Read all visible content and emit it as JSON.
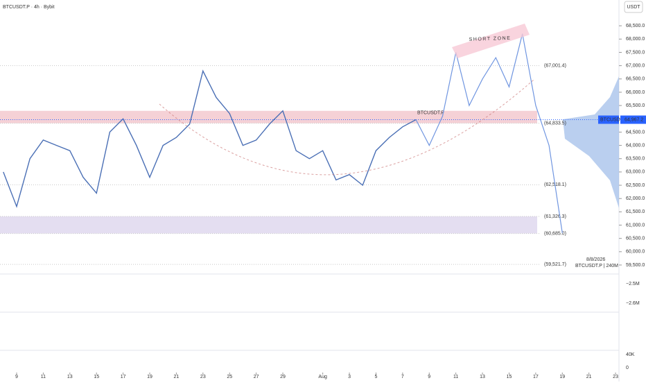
{
  "header": {
    "symbol": "BTCUSDT.P · 4h · Bybit",
    "currency": "USDT"
  },
  "chart_data": {
    "type": "line",
    "x": [
      8,
      9,
      10,
      11,
      12,
      13,
      14,
      15,
      16,
      17,
      18,
      19,
      20,
      21,
      22,
      23,
      24,
      25,
      26,
      27,
      28,
      29,
      30,
      31,
      32,
      33,
      34,
      35,
      36,
      37,
      38,
      39,
      40,
      41,
      42,
      43,
      44,
      45,
      46,
      47,
      48,
      49,
      50
    ],
    "xlim": [
      7.75,
      54.1
    ],
    "xticks": [
      9,
      11,
      13,
      15,
      17,
      19,
      21,
      23,
      25,
      27,
      29,
      {
        "value": 32,
        "label": "Aug"
      },
      {
        "value": 34,
        "label": "3"
      },
      {
        "value": 36,
        "label": "5"
      },
      {
        "value": 38,
        "label": "7"
      },
      {
        "value": 40,
        "label": "9"
      },
      {
        "value": 42,
        "label": "11"
      },
      {
        "value": 44,
        "label": "13"
      },
      {
        "value": 46,
        "label": "15"
      },
      {
        "value": 48,
        "label": "17"
      },
      {
        "value": 50,
        "label": "19"
      },
      {
        "value": 52,
        "label": "21"
      },
      {
        "value": 54,
        "label": "23"
      }
    ],
    "ylim": [
      59030,
      69470
    ],
    "yticks": [
      {
        "value": 68500,
        "label": "68,500.0"
      },
      {
        "value": 68000,
        "label": "68,000.0"
      },
      {
        "value": 67500,
        "label": "67,500.0"
      },
      {
        "value": 67000,
        "label": "67,000.0"
      },
      {
        "value": 66500,
        "label": "66,500.0"
      },
      {
        "value": 66000,
        "label": "66,000.0"
      },
      {
        "value": 65500,
        "label": "65,500.0"
      },
      {
        "value": 65000,
        "label": "65,000.0"
      },
      {
        "value": 64500,
        "label": "64,500.0"
      },
      {
        "value": 64000,
        "label": "64,000.0"
      },
      {
        "value": 63500,
        "label": "63,500.0"
      },
      {
        "value": 63000,
        "label": "63,000.0"
      },
      {
        "value": 62500,
        "label": "62,500.0"
      },
      {
        "value": 62000,
        "label": "62,000.0"
      },
      {
        "value": 61500,
        "label": "61,500.0"
      },
      {
        "value": 61000,
        "label": "61,000.0"
      },
      {
        "value": 60500,
        "label": "60,500.0"
      },
      {
        "value": 60000,
        "label": "60,000.0"
      },
      {
        "value": 59500,
        "label": "59,500.0"
      }
    ],
    "series": [
      {
        "name": "BTCUSDT.P",
        "color": "#4a6fb5",
        "values": [
          63000,
          61700,
          63500,
          64200,
          64000,
          63800,
          62800,
          62200,
          64500,
          65000,
          64000,
          62800,
          64000,
          64300,
          64800,
          66800,
          65800,
          65200,
          64000,
          64200,
          64800,
          65300,
          63800,
          63500,
          63800,
          62700,
          62900,
          62500,
          63800,
          64300,
          64700,
          64967,
          null,
          null,
          null,
          null,
          null,
          null,
          null,
          null,
          null,
          null,
          null
        ]
      },
      {
        "color": "#6f95e0",
        "values": [
          null,
          null,
          null,
          null,
          null,
          null,
          null,
          null,
          null,
          null,
          null,
          null,
          null,
          null,
          null,
          null,
          null,
          null,
          null,
          null,
          null,
          null,
          null,
          null,
          null,
          null,
          null,
          null,
          null,
          null,
          null,
          64967,
          64000,
          65100,
          67500,
          65500,
          66500,
          67300,
          66200,
          68200,
          65500,
          64000,
          60700
        ]
      }
    ],
    "last_price": {
      "name": "BTCUSDT.P",
      "value": 64967.2,
      "label": "64,967.2"
    },
    "levels": [
      {
        "value": 67001.4,
        "label": "(67,001.4)"
      },
      {
        "value": 64833.5,
        "label": "(64,833.5)"
      },
      {
        "value": 62518.1,
        "label": "(62,518.1)"
      },
      {
        "value": 61326.3,
        "label": "(61,326.3)"
      },
      {
        "value": 60685.0,
        "label": "(60,685.0)"
      },
      {
        "value": 59521.7,
        "label": "(59,521.7)"
      }
    ],
    "zones": [
      {
        "from": 64833.5,
        "to": 65300,
        "color": "#f3c6cc"
      },
      {
        "from": 60685,
        "to": 61326.3,
        "color": "#ddd6ee"
      }
    ],
    "annotation": "SHORT ZONE",
    "date_label": "8/8/2026",
    "interval_label": "BTCUSDT.P | 240M",
    "pane_labels": [
      "−2.5M",
      "−2.6M",
      "40K",
      "0"
    ]
  }
}
